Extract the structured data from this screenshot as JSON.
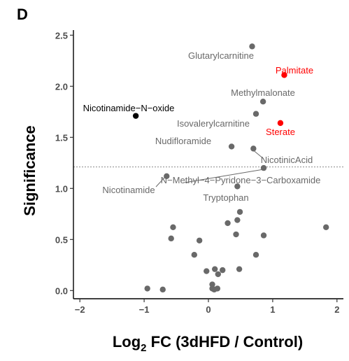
{
  "panel_label": "D",
  "chart_data": {
    "type": "scatter",
    "xlabel_main": "Log",
    "xlabel_sub": "2",
    "xlabel_rest": " FC (3dHFD / Control)",
    "ylabel": "Significance",
    "xlim": [
      -2.1,
      2.1
    ],
    "ylim": [
      -0.08,
      2.55
    ],
    "xticks": [
      -2,
      -1,
      0,
      1,
      2
    ],
    "yticks": [
      0.0,
      0.5,
      1.0,
      1.5,
      2.0,
      2.5
    ],
    "ytick_labels": [
      "0.0",
      "0.5",
      "1.0",
      "1.5",
      "2.0",
      "2.5"
    ],
    "threshold": 1.21,
    "colors": {
      "grey": "#696969",
      "red": "#ff0000",
      "black": "#000000"
    },
    "labeled_points": [
      {
        "label": "Glutarylcarnitine",
        "x": 0.68,
        "y": 2.39,
        "color": "grey"
      },
      {
        "label": "Palmitate",
        "x": 1.18,
        "y": 2.11,
        "color": "red"
      },
      {
        "label": "Methylmalonate",
        "x": 0.85,
        "y": 1.85,
        "color": "grey"
      },
      {
        "label": "Nicotinamide−N−oxide",
        "x": -1.13,
        "y": 1.71,
        "color": "black"
      },
      {
        "label": "Isovalerylcarnitine",
        "x": 0.74,
        "y": 1.73,
        "color": "grey"
      },
      {
        "label": "Sterate",
        "x": 1.12,
        "y": 1.64,
        "color": "red"
      },
      {
        "label": "Nudifloramide",
        "x": 0.36,
        "y": 1.41,
        "color": "grey"
      },
      {
        "label": "NicotinicAcid",
        "x": 0.7,
        "y": 1.39,
        "color": "grey"
      },
      {
        "label": "N−Methyl−4−Pyridone−3−Carboxamide",
        "x": 0.86,
        "y": 1.2,
        "color": "grey"
      },
      {
        "label": "Nicotinamide",
        "x": -0.65,
        "y": 1.12,
        "color": "grey"
      },
      {
        "label": "Tryptophan",
        "x": 0.45,
        "y": 1.02,
        "color": "grey"
      }
    ],
    "other_points": [
      [
        0.49,
        0.77
      ],
      [
        0.45,
        0.69
      ],
      [
        0.3,
        0.66
      ],
      [
        0.43,
        0.55
      ],
      [
        0.86,
        0.54
      ],
      [
        1.83,
        0.62
      ],
      [
        -0.55,
        0.62
      ],
      [
        -0.58,
        0.51
      ],
      [
        -0.14,
        0.49
      ],
      [
        -0.22,
        0.35
      ],
      [
        0.74,
        0.35
      ],
      [
        0.1,
        0.21
      ],
      [
        -0.03,
        0.19
      ],
      [
        0.22,
        0.2
      ],
      [
        0.15,
        0.16
      ],
      [
        0.48,
        0.21
      ],
      [
        0.06,
        0.06
      ],
      [
        0.14,
        0.02
      ],
      [
        0.06,
        0.02
      ],
      [
        0.09,
        0.01
      ],
      [
        -0.95,
        0.02
      ],
      [
        -0.71,
        0.01
      ]
    ]
  }
}
